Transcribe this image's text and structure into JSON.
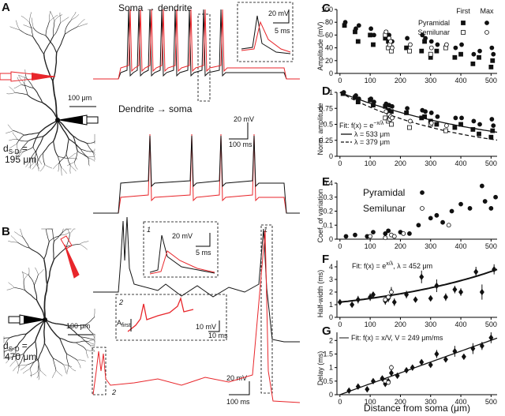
{
  "panels": {
    "A": {
      "label": "A",
      "distance_label": "d",
      "distance_sub": "S-D",
      "distance_eq": " =",
      "distance_value": "195 μm",
      "scale": "100 μm",
      "title1": "Soma → dendrite",
      "title2": "Dendrite → soma",
      "inset_v": "20 mV",
      "inset_t": "5 ms",
      "scale_v": "20 mV",
      "scale_t": "100 ms"
    },
    "B": {
      "label": "B",
      "distance_label": "d",
      "distance_sub": "S-D",
      "distance_eq": " =",
      "distance_value": "470 μm",
      "scale": "100 μm",
      "inset1": "1",
      "inset1_v": "20 mV",
      "inset1_t": "5 ms",
      "inset2": "2",
      "a_first": "A",
      "a_first_sub": "first",
      "inset2_v": "10 mV",
      "inset2_t": "10 ms",
      "box1": "1",
      "box2": "2",
      "scale_v": "20 mV",
      "scale_t": "100 ms"
    }
  },
  "chart_data": [
    {
      "type": "scatter",
      "panel": "C",
      "ylabel": "Amplitude (mV)",
      "xlim": [
        -10,
        520
      ],
      "ylim": [
        0,
        100
      ],
      "xticks": [
        0,
        100,
        200,
        300,
        400,
        500
      ],
      "yticks": [
        0,
        20,
        40,
        60,
        80,
        100
      ],
      "legend": "upper right",
      "columns": [
        "First",
        "Max"
      ],
      "series": [
        {
          "name": "Pyramidal",
          "marker": "square",
          "marker2": "circle",
          "fill": "filled",
          "x": [
            15,
            50,
            60,
            100,
            110,
            150,
            160,
            170,
            220,
            270,
            280,
            300,
            320,
            380,
            400,
            440,
            460,
            500,
            505
          ],
          "values": [
            75,
            65,
            50,
            60,
            45,
            55,
            50,
            40,
            40,
            35,
            50,
            25,
            35,
            25,
            30,
            15,
            25,
            10,
            20
          ],
          "values2": [
            80,
            70,
            75,
            70,
            60,
            65,
            60,
            50,
            55,
            60,
            55,
            50,
            45,
            40,
            45,
            30,
            35,
            40,
            30
          ]
        },
        {
          "name": "Semilunar",
          "marker": "square",
          "marker2": "circle",
          "fill": "open",
          "x": [
            150,
            160,
            165,
            170,
            230,
            300,
            350
          ],
          "values": [
            60,
            40,
            45,
            35,
            35,
            30,
            40
          ],
          "values2": [
            65,
            55,
            50,
            40,
            45,
            40,
            45
          ]
        }
      ]
    },
    {
      "type": "scatter",
      "panel": "D",
      "ylabel": "Norm. amplitude",
      "xlim": [
        -10,
        520
      ],
      "ylim": [
        0,
        1
      ],
      "xticks": [
        0,
        100,
        200,
        300,
        400,
        500
      ],
      "yticks": [
        0,
        0.25,
        0.5,
        0.75,
        1
      ],
      "fit_label": "Fit: f(x) = e",
      "fit_sup": "−x/λ",
      "fit_position": "lower left",
      "fits": [
        {
          "kind": "decay",
          "label": "λ = 533 μm",
          "lambda": 533,
          "style": "solid"
        },
        {
          "kind": "decay",
          "label": "λ = 379 μm",
          "lambda": 379,
          "style": "dashed"
        }
      ],
      "series": [
        {
          "marker": "square",
          "marker2": "circle",
          "fill": "filled",
          "x": [
            10,
            50,
            60,
            100,
            110,
            150,
            160,
            170,
            220,
            270,
            280,
            300,
            320,
            380,
            400,
            440,
            460,
            500,
            505
          ],
          "values": [
            0.98,
            0.92,
            0.85,
            0.88,
            0.8,
            0.78,
            0.72,
            0.7,
            0.68,
            0.6,
            0.62,
            0.55,
            0.5,
            0.45,
            0.5,
            0.42,
            0.35,
            0.3,
            0.4
          ],
          "values2": [
            1,
            0.95,
            0.9,
            0.9,
            0.85,
            0.82,
            0.8,
            0.78,
            0.75,
            0.72,
            0.7,
            0.68,
            0.62,
            0.6,
            0.6,
            0.55,
            0.5,
            0.58,
            0.48
          ]
        },
        {
          "marker": "square",
          "marker2": "circle",
          "fill": "open",
          "x": [
            150,
            160,
            165,
            170,
            230,
            300,
            350
          ],
          "values": [
            0.6,
            0.55,
            0.58,
            0.5,
            0.45,
            0.5,
            0.4
          ],
          "values2": [
            0.7,
            0.65,
            0.62,
            0.6,
            0.55,
            0.52,
            0.48
          ]
        }
      ]
    },
    {
      "type": "scatter",
      "panel": "E",
      "ylabel": "Coef. of variation",
      "xlim": [
        -10,
        520
      ],
      "ylim": [
        0,
        0.4
      ],
      "xticks": [
        0,
        100,
        200,
        300,
        400,
        500
      ],
      "yticks": [
        0,
        0.1,
        0.2,
        0.3,
        0.4
      ],
      "legend": "upper left",
      "series": [
        {
          "name": "Pyramidal",
          "marker": "circle",
          "fill": "filled",
          "x": [
            20,
            50,
            90,
            110,
            150,
            160,
            200,
            230,
            260,
            300,
            320,
            340,
            370,
            400,
            430,
            470,
            480,
            500,
            515
          ],
          "values": [
            0.02,
            0.03,
            0.02,
            0.05,
            0.04,
            0.06,
            0.05,
            0.04,
            0.1,
            0.15,
            0.17,
            0.12,
            0.2,
            0.25,
            0.22,
            0.38,
            0.27,
            0.22,
            0.3
          ]
        },
        {
          "name": "Semilunar",
          "marker": "circle",
          "fill": "open",
          "x": [
            100,
            150,
            170,
            180,
            210,
            360
          ],
          "values": [
            0.02,
            0.01,
            0.03,
            0.02,
            0.04,
            0.1
          ]
        }
      ]
    },
    {
      "type": "scatter",
      "panel": "F",
      "ylabel": "Half-width (ms)",
      "xlim": [
        -10,
        520
      ],
      "ylim": [
        0,
        4.5
      ],
      "xticks": [
        0,
        100,
        200,
        300,
        400,
        500
      ],
      "yticks": [
        0,
        1,
        2,
        3,
        4
      ],
      "fit_label": "Fit: f(x) = e",
      "fit_sup": "x/λ",
      "fit_param": ", λ = 452 μm",
      "fit_position": "upper left",
      "fits": [
        {
          "kind": "growth",
          "lambda": 452,
          "y0": 1.2,
          "style": "bold"
        }
      ],
      "series": [
        {
          "marker": "diamond",
          "fill": "filled",
          "x": [
            0,
            40,
            60,
            100,
            110,
            150,
            160,
            170,
            180,
            220,
            250,
            270,
            300,
            320,
            350,
            380,
            400,
            450,
            470,
            510
          ],
          "values": [
            1.2,
            1.0,
            1.4,
            1.6,
            1.8,
            1.3,
            1.5,
            2.0,
            1.2,
            1.8,
            1.4,
            3.2,
            1.5,
            2.5,
            1.6,
            2.2,
            2.0,
            3.6,
            2.0,
            3.8
          ],
          "errors": [
            0.2,
            0.2,
            0.3,
            0.3,
            0.2,
            0.3,
            0.3,
            0.4,
            0.3,
            0.3,
            0.2,
            0.5,
            0.2,
            0.5,
            0.3,
            0.3,
            0.3,
            0.4,
            0.6,
            0.4
          ]
        },
        {
          "marker": "circle",
          "fill": "open",
          "x": [
            150,
            160,
            170
          ],
          "values": [
            1.4,
            1.6,
            2.0
          ],
          "errors": [
            0.2,
            0.2,
            0.3
          ]
        }
      ]
    },
    {
      "type": "scatter",
      "panel": "G",
      "ylabel": "Delay (ms)",
      "xlabel": "Distance from soma (μm)",
      "xlim": [
        -10,
        520
      ],
      "ylim": [
        0,
        2.3
      ],
      "xticks": [
        0,
        100,
        200,
        300,
        400,
        500
      ],
      "yticks": [
        0,
        0.5,
        1,
        1.5,
        2
      ],
      "fit_label": "Fit: f(x) = x/V, V = 249 μm/ms",
      "fit_position": "upper left",
      "fits": [
        {
          "kind": "linear",
          "V": 249,
          "style": "solid"
        }
      ],
      "series": [
        {
          "marker": "diamond",
          "fill": "filled",
          "x": [
            30,
            60,
            90,
            110,
            140,
            150,
            160,
            170,
            190,
            220,
            240,
            270,
            300,
            320,
            350,
            380,
            410,
            440,
            470,
            500
          ],
          "values": [
            0.15,
            0.3,
            0.2,
            0.5,
            0.6,
            0.4,
            0.5,
            0.8,
            0.7,
            0.9,
            1.0,
            1.2,
            1.1,
            1.5,
            1.3,
            1.6,
            1.4,
            1.7,
            1.8,
            2.1
          ],
          "errors": [
            0.05,
            0.05,
            0.1,
            0.1,
            0.1,
            0.1,
            0.1,
            0.1,
            0.1,
            0.1,
            0.1,
            0.1,
            0.1,
            0.15,
            0.1,
            0.2,
            0.1,
            0.2,
            0.15,
            0.2
          ]
        },
        {
          "marker": "circle",
          "fill": "open",
          "x": [
            150,
            160,
            170
          ],
          "values": [
            0.5,
            0.45,
            1.0
          ],
          "errors": [
            0.05,
            0.05,
            0.1
          ]
        }
      ]
    }
  ]
}
